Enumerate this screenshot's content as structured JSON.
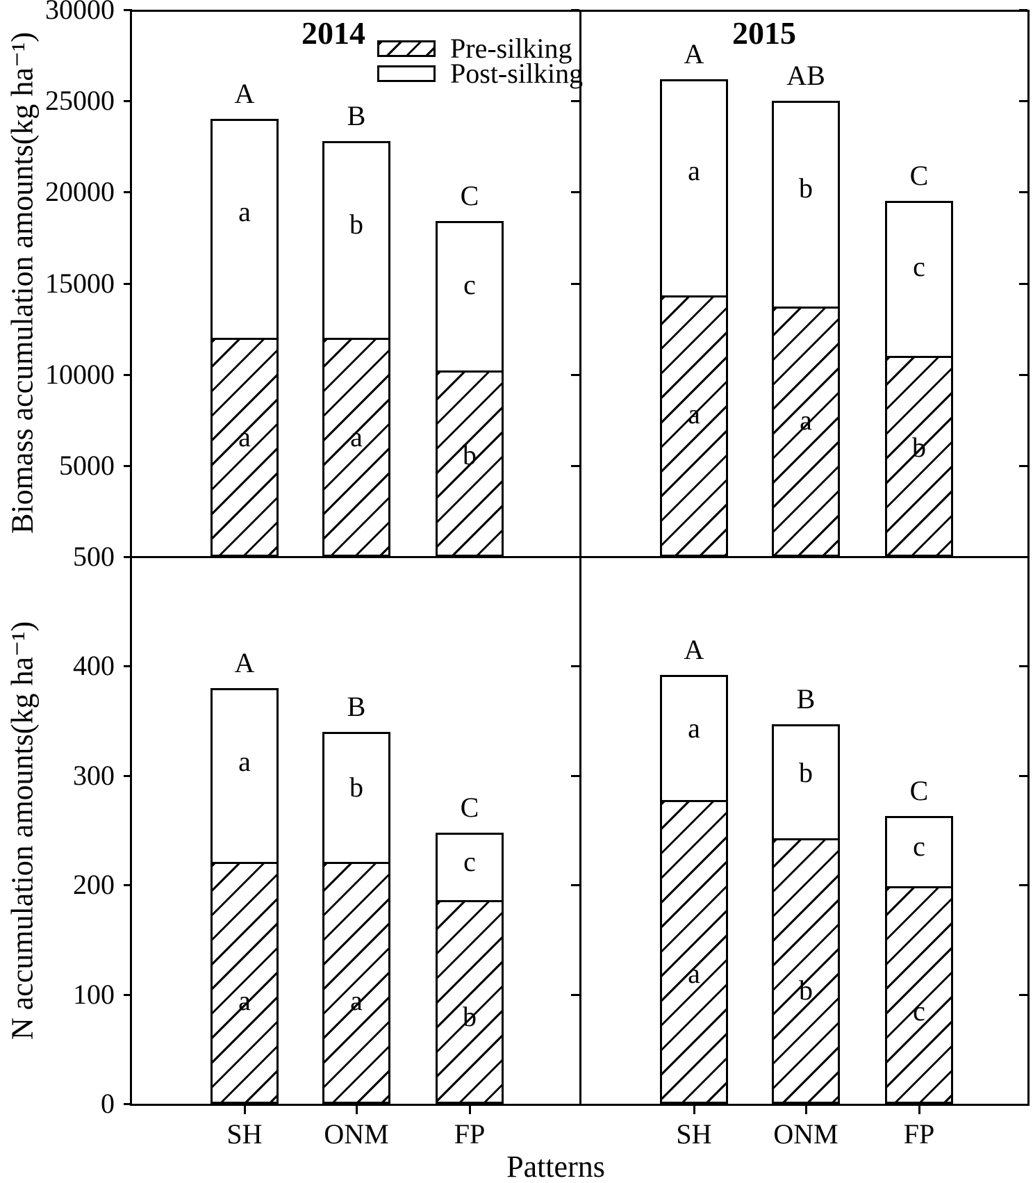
{
  "figure": {
    "xlabel": "Patterns",
    "legend": [
      {
        "label": "Pre-silking",
        "swatch": "diagonal-hatch"
      },
      {
        "label": "Post-silking",
        "swatch": "white"
      }
    ],
    "line_color": "#000000",
    "background_color": "#ffffff"
  },
  "chart_data": [
    {
      "id": "biomass",
      "type": "bar",
      "stacked": true,
      "ylabel": "Biomass accumulation amounts(kg ha⁻¹)",
      "ylim": [
        0,
        30000
      ],
      "ytick_values": [
        30000,
        25000,
        20000,
        15000,
        10000,
        5000
      ],
      "grid": false,
      "legend_position": "top-left-panel",
      "categories": [
        "SH",
        "ONM",
        "FP"
      ],
      "groups": [
        {
          "year": "2014",
          "bars": [
            {
              "category": "SH",
              "pre_silking": 11900,
              "post_silking": 12100,
              "total": 24000,
              "letter_total": "A",
              "letter_post": "a",
              "letter_pre": "a"
            },
            {
              "category": "ONM",
              "pre_silking": 11900,
              "post_silking": 10900,
              "total": 22800,
              "letter_total": "B",
              "letter_post": "b",
              "letter_pre": "a"
            },
            {
              "category": "FP",
              "pre_silking": 10100,
              "post_silking": 8300,
              "total": 18400,
              "letter_total": "C",
              "letter_post": "c",
              "letter_pre": "b"
            }
          ]
        },
        {
          "year": "2015",
          "bars": [
            {
              "category": "SH",
              "pre_silking": 14200,
              "post_silking": 12000,
              "total": 26200,
              "letter_total": "A",
              "letter_post": "a",
              "letter_pre": "a"
            },
            {
              "category": "ONM",
              "pre_silking": 13600,
              "post_silking": 11400,
              "total": 25000,
              "letter_total": "AB",
              "letter_post": "b",
              "letter_pre": "a"
            },
            {
              "category": "FP",
              "pre_silking": 10900,
              "post_silking": 8600,
              "total": 19500,
              "letter_total": "C",
              "letter_post": "c",
              "letter_pre": "b"
            }
          ]
        }
      ]
    },
    {
      "id": "nitrogen",
      "type": "bar",
      "stacked": true,
      "ylabel": "N accumulation amounts(kg ha⁻¹)",
      "ylim": [
        0,
        500
      ],
      "ytick_values": [
        500,
        400,
        300,
        200,
        100,
        0
      ],
      "grid": false,
      "categories": [
        "SH",
        "ONM",
        "FP"
      ],
      "groups": [
        {
          "year": "2014",
          "bars": [
            {
              "category": "SH",
              "pre_silking": 219,
              "post_silking": 161,
              "total": 380,
              "letter_total": "A",
              "letter_post": "a",
              "letter_pre": "a"
            },
            {
              "category": "ONM",
              "pre_silking": 219,
              "post_silking": 121,
              "total": 340,
              "letter_total": "B",
              "letter_post": "b",
              "letter_pre": "a"
            },
            {
              "category": "FP",
              "pre_silking": 184,
              "post_silking": 64,
              "total": 248,
              "letter_total": "C",
              "letter_post": "c",
              "letter_pre": "b"
            }
          ]
        },
        {
          "year": "2015",
          "bars": [
            {
              "category": "SH",
              "pre_silking": 276,
              "post_silking": 116,
              "total": 392,
              "letter_total": "A",
              "letter_post": "a",
              "letter_pre": "a"
            },
            {
              "category": "ONM",
              "pre_silking": 241,
              "post_silking": 106,
              "total": 347,
              "letter_total": "B",
              "letter_post": "b",
              "letter_pre": "b"
            },
            {
              "category": "FP",
              "pre_silking": 197,
              "post_silking": 66,
              "total": 263,
              "letter_total": "C",
              "letter_post": "c",
              "letter_pre": "c"
            }
          ]
        }
      ]
    }
  ]
}
